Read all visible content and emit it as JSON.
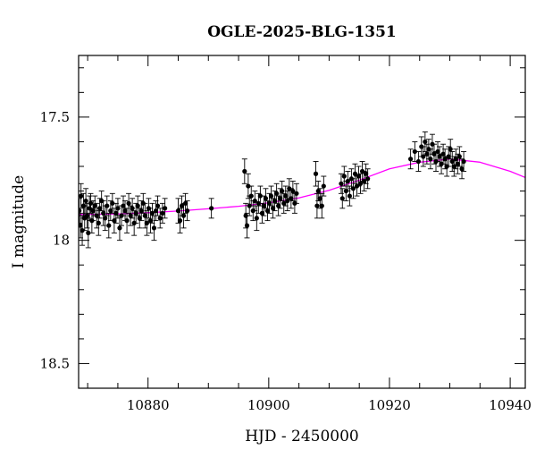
{
  "chart_data": {
    "type": "scatter",
    "title": "OGLE-2025-BLG-1351",
    "xlabel": "HJD - 2450000",
    "ylabel": "I magnitude",
    "xlim": [
      10868.5,
      10942.5
    ],
    "ylim": [
      18.6,
      17.25
    ],
    "y_inverted": true,
    "x_ticks_major": [
      10880,
      10900,
      10920,
      10940
    ],
    "x_tick_labels": [
      "10880",
      "10900",
      "10920",
      "10940"
    ],
    "y_ticks_major": [
      17.5,
      18,
      18.5
    ],
    "y_tick_labels": [
      "17.5",
      "18",
      "18.5"
    ],
    "grid": false,
    "colors": {
      "points": "#000000",
      "model": "#ff00ff",
      "frame": "#000000"
    },
    "model_curve": {
      "name": "model",
      "x": [
        10868.5,
        10875,
        10880,
        10885,
        10890,
        10895,
        10900,
        10905,
        10910,
        10915,
        10920,
        10925,
        10930,
        10935,
        10940,
        10942.5
      ],
      "y": [
        17.895,
        17.893,
        17.888,
        17.881,
        17.872,
        17.862,
        17.848,
        17.828,
        17.797,
        17.756,
        17.71,
        17.683,
        17.67,
        17.683,
        17.72,
        17.745
      ]
    },
    "observations": [
      {
        "x": 10868.6,
        "y": 17.88,
        "err": 0.05
      },
      {
        "x": 10868.8,
        "y": 17.94,
        "err": 0.05
      },
      {
        "x": 10868.9,
        "y": 17.82,
        "err": 0.05
      },
      {
        "x": 10869.1,
        "y": 17.96,
        "err": 0.06
      },
      {
        "x": 10869.3,
        "y": 17.86,
        "err": 0.05
      },
      {
        "x": 10869.5,
        "y": 17.91,
        "err": 0.05
      },
      {
        "x": 10869.7,
        "y": 17.84,
        "err": 0.05
      },
      {
        "x": 10869.9,
        "y": 17.9,
        "err": 0.05
      },
      {
        "x": 10870.1,
        "y": 17.97,
        "err": 0.06
      },
      {
        "x": 10870.3,
        "y": 17.87,
        "err": 0.05
      },
      {
        "x": 10870.5,
        "y": 17.85,
        "err": 0.04
      },
      {
        "x": 10870.7,
        "y": 17.92,
        "err": 0.05
      },
      {
        "x": 10870.9,
        "y": 17.88,
        "err": 0.04
      },
      {
        "x": 10871.2,
        "y": 17.86,
        "err": 0.04
      },
      {
        "x": 10871.5,
        "y": 17.9,
        "err": 0.05
      },
      {
        "x": 10871.8,
        "y": 17.93,
        "err": 0.05
      },
      {
        "x": 10872.0,
        "y": 17.87,
        "err": 0.04
      },
      {
        "x": 10872.3,
        "y": 17.84,
        "err": 0.04
      },
      {
        "x": 10872.6,
        "y": 17.89,
        "err": 0.05
      },
      {
        "x": 10872.9,
        "y": 17.91,
        "err": 0.05
      },
      {
        "x": 10873.2,
        "y": 17.86,
        "err": 0.04
      },
      {
        "x": 10873.5,
        "y": 17.94,
        "err": 0.05
      },
      {
        "x": 10873.8,
        "y": 17.88,
        "err": 0.04
      },
      {
        "x": 10874.1,
        "y": 17.85,
        "err": 0.04
      },
      {
        "x": 10874.4,
        "y": 17.92,
        "err": 0.05
      },
      {
        "x": 10874.7,
        "y": 17.89,
        "err": 0.04
      },
      {
        "x": 10875.0,
        "y": 17.87,
        "err": 0.04
      },
      {
        "x": 10875.3,
        "y": 17.95,
        "err": 0.05
      },
      {
        "x": 10875.6,
        "y": 17.9,
        "err": 0.04
      },
      {
        "x": 10875.9,
        "y": 17.86,
        "err": 0.04
      },
      {
        "x": 10876.2,
        "y": 17.88,
        "err": 0.04
      },
      {
        "x": 10876.5,
        "y": 17.92,
        "err": 0.05
      },
      {
        "x": 10876.8,
        "y": 17.85,
        "err": 0.04
      },
      {
        "x": 10877.1,
        "y": 17.9,
        "err": 0.04
      },
      {
        "x": 10877.4,
        "y": 17.87,
        "err": 0.04
      },
      {
        "x": 10877.7,
        "y": 17.93,
        "err": 0.05
      },
      {
        "x": 10878.0,
        "y": 17.89,
        "err": 0.04
      },
      {
        "x": 10878.3,
        "y": 17.86,
        "err": 0.04
      },
      {
        "x": 10878.6,
        "y": 17.91,
        "err": 0.04
      },
      {
        "x": 10878.9,
        "y": 17.88,
        "err": 0.04
      },
      {
        "x": 10879.2,
        "y": 17.85,
        "err": 0.04
      },
      {
        "x": 10879.5,
        "y": 17.9,
        "err": 0.05
      },
      {
        "x": 10879.8,
        "y": 17.93,
        "err": 0.05
      },
      {
        "x": 10880.1,
        "y": 17.87,
        "err": 0.04
      },
      {
        "x": 10880.4,
        "y": 17.92,
        "err": 0.05
      },
      {
        "x": 10880.7,
        "y": 17.89,
        "err": 0.04
      },
      {
        "x": 10881.0,
        "y": 17.95,
        "err": 0.05
      },
      {
        "x": 10881.3,
        "y": 17.88,
        "err": 0.04
      },
      {
        "x": 10881.6,
        "y": 17.86,
        "err": 0.04
      },
      {
        "x": 10882.0,
        "y": 17.91,
        "err": 0.04
      },
      {
        "x": 10882.4,
        "y": 17.89,
        "err": 0.04
      },
      {
        "x": 10882.8,
        "y": 17.87,
        "err": 0.04
      },
      {
        "x": 10885.0,
        "y": 17.88,
        "err": 0.05
      },
      {
        "x": 10885.3,
        "y": 17.92,
        "err": 0.05
      },
      {
        "x": 10885.6,
        "y": 17.86,
        "err": 0.04
      },
      {
        "x": 10885.9,
        "y": 17.9,
        "err": 0.05
      },
      {
        "x": 10886.2,
        "y": 17.85,
        "err": 0.04
      },
      {
        "x": 10886.5,
        "y": 17.88,
        "err": 0.04
      },
      {
        "x": 10890.5,
        "y": 17.87,
        "err": 0.04
      },
      {
        "x": 10896.0,
        "y": 17.72,
        "err": 0.05
      },
      {
        "x": 10896.2,
        "y": 17.9,
        "err": 0.05
      },
      {
        "x": 10896.4,
        "y": 17.94,
        "err": 0.05
      },
      {
        "x": 10896.6,
        "y": 17.78,
        "err": 0.05
      },
      {
        "x": 10896.8,
        "y": 17.86,
        "err": 0.04
      },
      {
        "x": 10897.1,
        "y": 17.82,
        "err": 0.04
      },
      {
        "x": 10897.4,
        "y": 17.88,
        "err": 0.04
      },
      {
        "x": 10897.7,
        "y": 17.84,
        "err": 0.04
      },
      {
        "x": 10898.0,
        "y": 17.91,
        "err": 0.05
      },
      {
        "x": 10898.3,
        "y": 17.85,
        "err": 0.04
      },
      {
        "x": 10898.6,
        "y": 17.82,
        "err": 0.04
      },
      {
        "x": 10898.9,
        "y": 17.89,
        "err": 0.04
      },
      {
        "x": 10899.2,
        "y": 17.86,
        "err": 0.04
      },
      {
        "x": 10899.5,
        "y": 17.83,
        "err": 0.04
      },
      {
        "x": 10899.8,
        "y": 17.88,
        "err": 0.04
      },
      {
        "x": 10900.1,
        "y": 17.85,
        "err": 0.04
      },
      {
        "x": 10900.4,
        "y": 17.82,
        "err": 0.04
      },
      {
        "x": 10900.7,
        "y": 17.87,
        "err": 0.04
      },
      {
        "x": 10901.0,
        "y": 17.84,
        "err": 0.04
      },
      {
        "x": 10901.3,
        "y": 17.81,
        "err": 0.04
      },
      {
        "x": 10901.6,
        "y": 17.86,
        "err": 0.04
      },
      {
        "x": 10901.9,
        "y": 17.83,
        "err": 0.04
      },
      {
        "x": 10902.2,
        "y": 17.8,
        "err": 0.04
      },
      {
        "x": 10902.5,
        "y": 17.85,
        "err": 0.04
      },
      {
        "x": 10902.8,
        "y": 17.82,
        "err": 0.04
      },
      {
        "x": 10903.1,
        "y": 17.84,
        "err": 0.04
      },
      {
        "x": 10903.4,
        "y": 17.79,
        "err": 0.04
      },
      {
        "x": 10903.7,
        "y": 17.83,
        "err": 0.04
      },
      {
        "x": 10904.0,
        "y": 17.8,
        "err": 0.04
      },
      {
        "x": 10904.3,
        "y": 17.85,
        "err": 0.04
      },
      {
        "x": 10904.6,
        "y": 17.81,
        "err": 0.04
      },
      {
        "x": 10907.8,
        "y": 17.73,
        "err": 0.05
      },
      {
        "x": 10908.0,
        "y": 17.86,
        "err": 0.05
      },
      {
        "x": 10908.2,
        "y": 17.8,
        "err": 0.04
      },
      {
        "x": 10908.5,
        "y": 17.83,
        "err": 0.04
      },
      {
        "x": 10908.8,
        "y": 17.86,
        "err": 0.05
      },
      {
        "x": 10909.1,
        "y": 17.78,
        "err": 0.04
      },
      {
        "x": 10912.0,
        "y": 17.77,
        "err": 0.04
      },
      {
        "x": 10912.2,
        "y": 17.83,
        "err": 0.04
      },
      {
        "x": 10912.5,
        "y": 17.74,
        "err": 0.04
      },
      {
        "x": 10912.8,
        "y": 17.8,
        "err": 0.04
      },
      {
        "x": 10913.1,
        "y": 17.76,
        "err": 0.04
      },
      {
        "x": 10913.4,
        "y": 17.82,
        "err": 0.04
      },
      {
        "x": 10913.7,
        "y": 17.75,
        "err": 0.04
      },
      {
        "x": 10914.0,
        "y": 17.79,
        "err": 0.04
      },
      {
        "x": 10914.3,
        "y": 17.73,
        "err": 0.04
      },
      {
        "x": 10914.6,
        "y": 17.78,
        "err": 0.04
      },
      {
        "x": 10914.9,
        "y": 17.74,
        "err": 0.04
      },
      {
        "x": 10915.2,
        "y": 17.77,
        "err": 0.04
      },
      {
        "x": 10915.5,
        "y": 17.72,
        "err": 0.04
      },
      {
        "x": 10915.8,
        "y": 17.76,
        "err": 0.04
      },
      {
        "x": 10916.1,
        "y": 17.73,
        "err": 0.04
      },
      {
        "x": 10916.4,
        "y": 17.75,
        "err": 0.04
      },
      {
        "x": 10923.5,
        "y": 17.67,
        "err": 0.04
      },
      {
        "x": 10924.2,
        "y": 17.64,
        "err": 0.04
      },
      {
        "x": 10924.8,
        "y": 17.68,
        "err": 0.04
      },
      {
        "x": 10925.3,
        "y": 17.62,
        "err": 0.04
      },
      {
        "x": 10925.6,
        "y": 17.66,
        "err": 0.04
      },
      {
        "x": 10925.9,
        "y": 17.6,
        "err": 0.04
      },
      {
        "x": 10926.2,
        "y": 17.65,
        "err": 0.04
      },
      {
        "x": 10926.5,
        "y": 17.63,
        "err": 0.04
      },
      {
        "x": 10926.8,
        "y": 17.67,
        "err": 0.04
      },
      {
        "x": 10927.1,
        "y": 17.61,
        "err": 0.04
      },
      {
        "x": 10927.4,
        "y": 17.65,
        "err": 0.04
      },
      {
        "x": 10927.7,
        "y": 17.68,
        "err": 0.04
      },
      {
        "x": 10928.0,
        "y": 17.64,
        "err": 0.04
      },
      {
        "x": 10928.3,
        "y": 17.66,
        "err": 0.04
      },
      {
        "x": 10928.6,
        "y": 17.69,
        "err": 0.04
      },
      {
        "x": 10928.9,
        "y": 17.65,
        "err": 0.04
      },
      {
        "x": 10929.2,
        "y": 17.67,
        "err": 0.04
      },
      {
        "x": 10929.5,
        "y": 17.7,
        "err": 0.04
      },
      {
        "x": 10929.8,
        "y": 17.66,
        "err": 0.04
      },
      {
        "x": 10930.1,
        "y": 17.63,
        "err": 0.04
      },
      {
        "x": 10930.4,
        "y": 17.68,
        "err": 0.04
      },
      {
        "x": 10930.7,
        "y": 17.7,
        "err": 0.04
      },
      {
        "x": 10931.0,
        "y": 17.67,
        "err": 0.04
      },
      {
        "x": 10931.3,
        "y": 17.69,
        "err": 0.04
      },
      {
        "x": 10931.6,
        "y": 17.66,
        "err": 0.04
      },
      {
        "x": 10932.0,
        "y": 17.71,
        "err": 0.04
      },
      {
        "x": 10932.3,
        "y": 17.68,
        "err": 0.04
      }
    ]
  }
}
